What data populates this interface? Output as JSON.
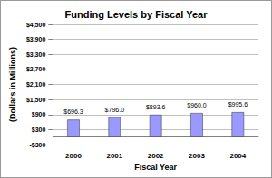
{
  "chart_data": {
    "type": "bar",
    "title": "Funding Levels by Fiscal Year",
    "x_label": "Fiscal Year",
    "y_label": "(Dollars in Millions)",
    "categories": [
      "2000",
      "2001",
      "2002",
      "2003",
      "2004"
    ],
    "values": [
      696.3,
      796.0,
      893.6,
      960.0,
      995.6
    ],
    "value_labels": [
      "$696.3",
      "$796.0",
      "$893.6",
      "$960.0",
      "$995.6"
    ],
    "data_labels": true,
    "color": "#9999ff",
    "ylim": [
      -300,
      4500
    ],
    "yticks": [
      {
        "value": -300,
        "label": "-$300"
      },
      {
        "value": 300,
        "label": "$300"
      },
      {
        "value": 900,
        "label": "$900"
      },
      {
        "value": 1500,
        "label": "$1,500"
      },
      {
        "value": 2100,
        "label": "$2,100"
      },
      {
        "value": 2700,
        "label": "$2,700"
      },
      {
        "value": 3300,
        "label": "$3,300"
      },
      {
        "value": 3900,
        "label": "$3,900"
      },
      {
        "value": 4500,
        "label": "$4,500"
      }
    ],
    "grid": true
  }
}
